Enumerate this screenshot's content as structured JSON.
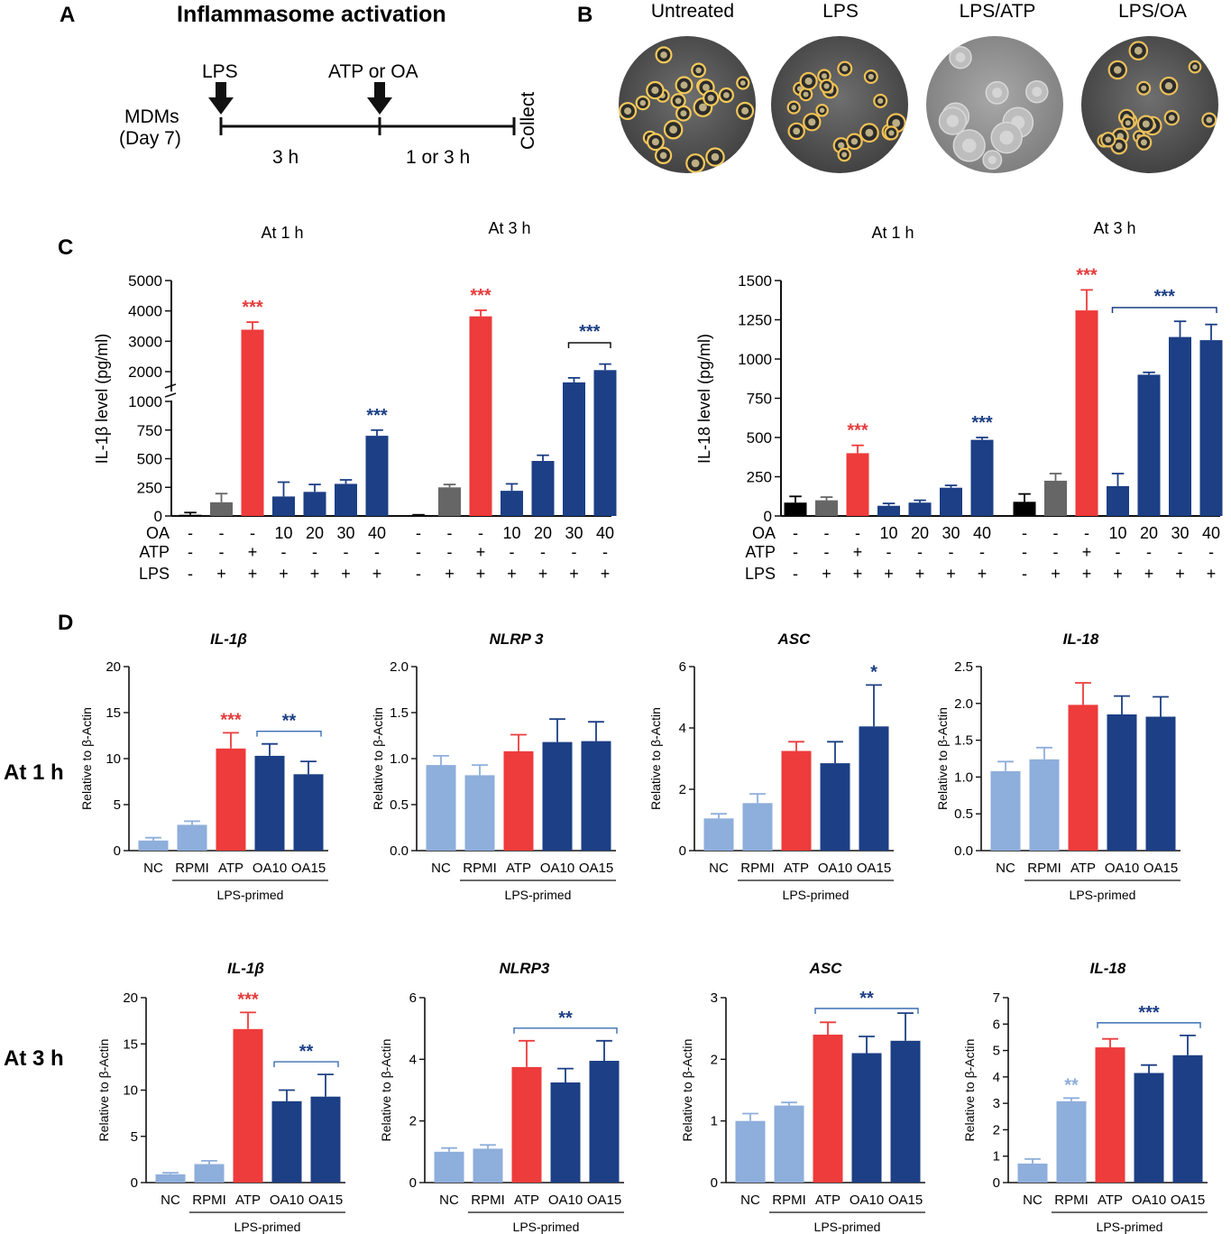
{
  "panel_letters": {
    "A": "A",
    "B": "B",
    "C": "C",
    "D": "D"
  },
  "panel_a": {
    "title": "Inflammasome activation",
    "cells": "MDMs",
    "day": "(Day 7)",
    "lps": "LPS",
    "atp_oa": "ATP or OA",
    "collect": "Collect",
    "t1": "3 h",
    "t2": "1 or 3 h"
  },
  "panel_b": {
    "labels": [
      "Untreated",
      "LPS",
      "LPS/ATP",
      "LPS/OA"
    ]
  },
  "rows_c": {
    "labels": [
      "OA",
      "ATP",
      "LPS"
    ],
    "oa": [
      "-",
      "-",
      "-",
      "10",
      "20",
      "30",
      "40"
    ],
    "atp": [
      "-",
      "-",
      "+",
      "-",
      "-",
      "-",
      "-"
    ],
    "lps": [
      "-",
      "+",
      "+",
      "+",
      "+",
      "+",
      "+"
    ]
  },
  "row_d_labels": [
    "At 1 h",
    "At 3 h"
  ],
  "lps_primed": "LPS-primed",
  "colors": {
    "red": "#ee3b3b",
    "navy": "#1c3f85",
    "light": "#8eaedb",
    "gray": "#666666",
    "black": "#000000",
    "sig_navy": "#1c3f85",
    "sig_red": "#e43d3d",
    "sig_light": "#8eaedb"
  },
  "chart_data": [
    {
      "type": "bar",
      "id": "il1b_protein",
      "ylabel": "IL-1β level (pg/ml)",
      "y_break": true,
      "yticks_lower": [
        "0",
        "250",
        "500",
        "750",
        "1000"
      ],
      "yticks_upper": [
        "2000",
        "3000",
        "4000",
        "5000"
      ],
      "groups": [
        {
          "title": "At 1 h",
          "values": [
            10,
            120,
            3380,
            170,
            210,
            280,
            700
          ],
          "errors": [
            20,
            75,
            250,
            125,
            65,
            35,
            50
          ],
          "colors": [
            "black",
            "gray",
            "red",
            "navy",
            "navy",
            "navy",
            "navy"
          ],
          "sig": [
            {
              "bar": 2,
              "text": "***",
              "color": "sig_red"
            },
            {
              "bar": 6,
              "text": "***",
              "color": "sig_navy"
            }
          ]
        },
        {
          "title": "At 3 h",
          "values": [
            5,
            250,
            3820,
            220,
            480,
            1640,
            2050
          ],
          "errors": [
            5,
            25,
            200,
            60,
            50,
            150,
            200
          ],
          "colors": [
            "black",
            "gray",
            "red",
            "navy",
            "navy",
            "navy",
            "navy"
          ],
          "sig": [
            {
              "bar": 2,
              "text": "***",
              "color": "sig_red"
            }
          ],
          "bracket": {
            "from": 5,
            "to": 6,
            "text": "***",
            "color": "sig_navy"
          }
        }
      ]
    },
    {
      "type": "bar",
      "id": "il18_protein",
      "ylabel": "IL-18 level (pg/ml)",
      "yticks": [
        "0",
        "250",
        "500",
        "750",
        "1000",
        "1250",
        "1500"
      ],
      "ylim": [
        0,
        1500
      ],
      "groups": [
        {
          "title": "At 1 h",
          "values": [
            85,
            100,
            400,
            65,
            85,
            180,
            485
          ],
          "errors": [
            40,
            20,
            50,
            15,
            15,
            15,
            15
          ],
          "colors": [
            "black",
            "gray",
            "red",
            "navy",
            "navy",
            "navy",
            "navy"
          ],
          "sig": [
            {
              "bar": 2,
              "text": "***",
              "color": "sig_red"
            },
            {
              "bar": 6,
              "text": "***",
              "color": "sig_navy"
            }
          ]
        },
        {
          "title": "At 3 h",
          "values": [
            90,
            225,
            1310,
            190,
            900,
            1140,
            1120
          ],
          "errors": [
            50,
            45,
            130,
            80,
            15,
            100,
            100
          ],
          "colors": [
            "black",
            "gray",
            "red",
            "navy",
            "navy",
            "navy",
            "navy"
          ],
          "sig": [
            {
              "bar": 2,
              "text": "***",
              "color": "sig_red"
            }
          ],
          "bracket": {
            "from": 3,
            "to": 6,
            "text": "***",
            "color": "sig_navy"
          }
        }
      ]
    },
    {
      "type": "bar",
      "id": "d_1h_il1b",
      "title": "IL-1β",
      "ylabel": "Relative to β-Actin",
      "categories": [
        "NC",
        "RPMI",
        "ATP",
        "OA10",
        "OA15"
      ],
      "ylim": [
        0,
        20
      ],
      "yticks": [
        "0",
        "5",
        "10",
        "15",
        "20"
      ],
      "values": [
        1.1,
        2.8,
        11.1,
        10.3,
        8.3
      ],
      "errors": [
        0.3,
        0.4,
        1.7,
        1.3,
        1.4
      ],
      "colors": [
        "light",
        "light",
        "red",
        "navy",
        "navy"
      ],
      "sig": [
        {
          "bar": 2,
          "text": "***",
          "color": "sig_red"
        }
      ],
      "bracket": {
        "from": 3,
        "to": 4,
        "text": "**",
        "color": "sig_navy"
      }
    },
    {
      "type": "bar",
      "id": "d_1h_nlrp3",
      "title": "NLRP 3",
      "ylabel": "Relative to β-Actin",
      "categories": [
        "NC",
        "RPMI",
        "ATP",
        "OA10",
        "OA15"
      ],
      "ylim": [
        0,
        2.0
      ],
      "yticks": [
        "0.0",
        "0.5",
        "1.0",
        "1.5",
        "2.0"
      ],
      "values": [
        0.93,
        0.82,
        1.08,
        1.18,
        1.19
      ],
      "errors": [
        0.1,
        0.11,
        0.18,
        0.25,
        0.21
      ],
      "colors": [
        "light",
        "light",
        "red",
        "navy",
        "navy"
      ]
    },
    {
      "type": "bar",
      "id": "d_1h_asc",
      "title": "ASC",
      "ylabel": "Relative to β-Actin",
      "categories": [
        "NC",
        "RPMI",
        "ATP",
        "OA10",
        "OA15"
      ],
      "ylim": [
        0,
        6
      ],
      "yticks": [
        "0",
        "2",
        "4",
        "6"
      ],
      "values": [
        1.05,
        1.55,
        3.25,
        2.85,
        4.05
      ],
      "errors": [
        0.15,
        0.3,
        0.3,
        0.7,
        1.35
      ],
      "colors": [
        "light",
        "light",
        "red",
        "navy",
        "navy"
      ],
      "sig": [
        {
          "bar": 4,
          "text": "*",
          "color": "sig_navy"
        }
      ]
    },
    {
      "type": "bar",
      "id": "d_1h_il18",
      "title": "IL-18",
      "ylabel": "Relative to β-Actin",
      "categories": [
        "NC",
        "RPMI",
        "ATP",
        "OA10",
        "OA15"
      ],
      "ylim": [
        0,
        2.5
      ],
      "yticks": [
        "0.0",
        "0.5",
        "1.0",
        "1.5",
        "2.0",
        "2.5"
      ],
      "values": [
        1.08,
        1.24,
        1.98,
        1.85,
        1.82
      ],
      "errors": [
        0.13,
        0.16,
        0.3,
        0.25,
        0.27
      ],
      "colors": [
        "light",
        "light",
        "red",
        "navy",
        "navy"
      ]
    },
    {
      "type": "bar",
      "id": "d_3h_il1b",
      "title": "IL-1β",
      "ylabel": "Relative to β-Actin",
      "categories": [
        "NC",
        "RPMI",
        "ATP",
        "OA10",
        "OA15"
      ],
      "ylim": [
        0,
        20
      ],
      "yticks": [
        "0",
        "5",
        "10",
        "15",
        "20"
      ],
      "values": [
        0.9,
        2.0,
        16.6,
        8.8,
        9.3
      ],
      "errors": [
        0.15,
        0.35,
        1.8,
        1.2,
        2.4
      ],
      "colors": [
        "light",
        "light",
        "red",
        "navy",
        "navy"
      ],
      "sig": [
        {
          "bar": 2,
          "text": "***",
          "color": "sig_red"
        }
      ],
      "bracket": {
        "from": 3,
        "to": 4,
        "text": "**",
        "color": "sig_navy"
      }
    },
    {
      "type": "bar",
      "id": "d_3h_nlrp3",
      "title": "NLRP3",
      "ylabel": "Relative to β-Actin",
      "categories": [
        "NC",
        "RPMI",
        "ATP",
        "OA10",
        "OA15"
      ],
      "ylim": [
        0,
        6
      ],
      "yticks": [
        "0",
        "2",
        "4",
        "6"
      ],
      "values": [
        1.0,
        1.1,
        3.75,
        3.25,
        3.95
      ],
      "errors": [
        0.12,
        0.12,
        0.85,
        0.45,
        0.65
      ],
      "colors": [
        "light",
        "light",
        "red",
        "navy",
        "navy"
      ],
      "bracket": {
        "from": 2,
        "to": 4,
        "text": "**",
        "color": "sig_navy"
      }
    },
    {
      "type": "bar",
      "id": "d_3h_asc",
      "title": "ASC",
      "ylabel": "Relative to β-Actin",
      "categories": [
        "NC",
        "RPMI",
        "ATP",
        "OA10",
        "OA15"
      ],
      "ylim": [
        0,
        3
      ],
      "yticks": [
        "0",
        "1",
        "2",
        "3"
      ],
      "values": [
        1.0,
        1.25,
        2.4,
        2.1,
        2.3
      ],
      "errors": [
        0.12,
        0.05,
        0.2,
        0.27,
        0.45
      ],
      "colors": [
        "light",
        "light",
        "red",
        "navy",
        "navy"
      ],
      "bracket": {
        "from": 2,
        "to": 4,
        "text": "**",
        "color": "sig_navy"
      }
    },
    {
      "type": "bar",
      "id": "d_3h_il18",
      "title": "IL-18",
      "ylabel": "Relative to β-Actin",
      "categories": [
        "NC",
        "RPMI",
        "ATP",
        "OA10",
        "OA15"
      ],
      "ylim": [
        0,
        7
      ],
      "yticks": [
        "0",
        "1",
        "2",
        "3",
        "4",
        "5",
        "6",
        "7"
      ],
      "values": [
        0.72,
        3.08,
        5.12,
        4.15,
        4.82
      ],
      "errors": [
        0.17,
        0.12,
        0.32,
        0.3,
        0.75
      ],
      "colors": [
        "light",
        "light",
        "red",
        "navy",
        "navy"
      ],
      "sig": [
        {
          "bar": 1,
          "text": "**",
          "color": "sig_light"
        }
      ],
      "bracket": {
        "from": 2,
        "to": 4,
        "text": "***",
        "color": "sig_navy"
      }
    }
  ]
}
